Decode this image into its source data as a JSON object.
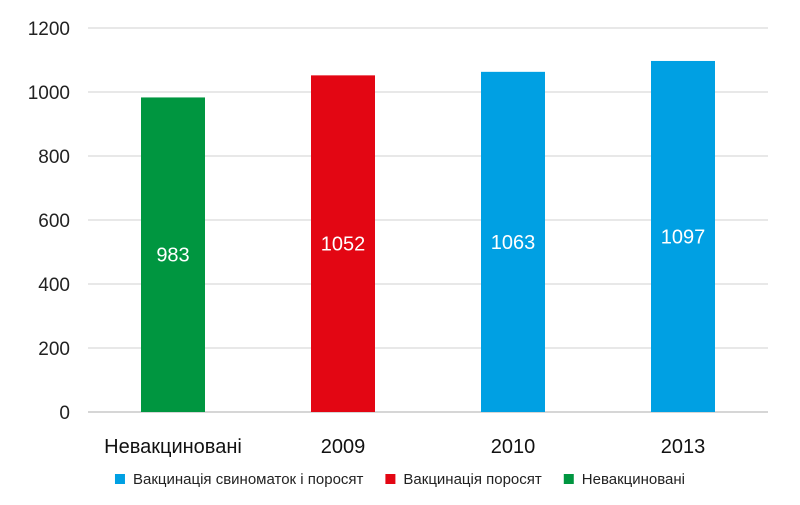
{
  "chart_data": {
    "type": "bar",
    "title": "",
    "xlabel": "",
    "ylabel": "",
    "categories": [
      "Невакциновані",
      "2009",
      "2010",
      "2013"
    ],
    "values": [
      983,
      1052,
      1063,
      1097
    ],
    "data_labels": [
      "983",
      "1052",
      "1063",
      "1097"
    ],
    "bar_series": [
      2,
      1,
      0,
      0
    ],
    "ylim": [
      0,
      1200
    ],
    "yticks": [
      0,
      200,
      400,
      600,
      800,
      1000,
      1200
    ],
    "grid": true,
    "legend_position": "bottom",
    "series": [
      {
        "name": "Вакцинація свиноматок і поросят",
        "color": "#00a0e3"
      },
      {
        "name": "Вакцинація поросят",
        "color": "#e30613"
      },
      {
        "name": "Невакциновані",
        "color": "#009640"
      }
    ]
  }
}
